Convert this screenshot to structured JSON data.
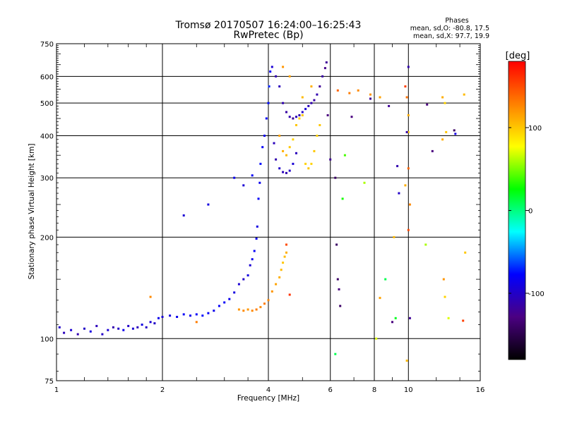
{
  "chart_data": {
    "type": "scatter",
    "title": "Tromsø 20170507 16:24:00–16:25:43",
    "subtitle": "RwPretec (Bp)",
    "xlabel": "Frequency [MHz]",
    "ylabel": "Stationary phase Virtual Height [km]",
    "x_scale": "log",
    "y_scale": "log",
    "xlim": [
      1,
      16
    ],
    "ylim": [
      75,
      750
    ],
    "x_ticks": [
      1,
      2,
      4,
      6,
      8,
      10,
      16
    ],
    "x_tick_labels": [
      "1",
      "2",
      "4",
      "6",
      "8",
      "10",
      "16"
    ],
    "y_ticks": [
      75,
      100,
      200,
      300,
      400,
      500,
      600,
      750
    ],
    "y_tick_labels": [
      "75",
      "100",
      "200",
      "300",
      "400",
      "500",
      "600",
      "750"
    ],
    "grid": true,
    "phases": {
      "heading": "Phases",
      "line_o": "mean, sd,O: -80.8, 17.5",
      "line_x": "mean, sd,X:  97.7, 19.9"
    },
    "colorbar": {
      "label": "[deg]",
      "range": [
        -180,
        180
      ],
      "ticks": [
        100,
        0,
        -100
      ],
      "tick_labels": [
        "100",
        "0",
        "-100"
      ],
      "colors": [
        "#000000",
        "#4b0082",
        "#0000ff",
        "#00ffff",
        "#00ff00",
        "#ffff00",
        "#ff8000",
        "#ff0000"
      ]
    },
    "series": [
      {
        "points": [
          [
            1.02,
            108,
            -100
          ],
          [
            1.05,
            104,
            -105
          ],
          [
            1.1,
            106,
            -95
          ],
          [
            1.15,
            103,
            -110
          ],
          [
            1.2,
            107,
            -100
          ],
          [
            1.25,
            105,
            -90
          ],
          [
            1.3,
            109,
            -105
          ],
          [
            1.35,
            103,
            -100
          ],
          [
            1.4,
            106,
            -95
          ],
          [
            1.45,
            108,
            -110
          ],
          [
            1.5,
            107,
            -100
          ],
          [
            1.55,
            106,
            -85
          ],
          [
            1.6,
            109,
            -100
          ],
          [
            1.65,
            107,
            -95
          ],
          [
            1.7,
            108,
            -105
          ],
          [
            1.75,
            110,
            -90
          ],
          [
            1.8,
            108,
            -100
          ],
          [
            1.85,
            112,
            -95
          ],
          [
            1.9,
            111,
            -100
          ],
          [
            1.95,
            115,
            -85
          ],
          [
            2.0,
            116,
            -95
          ],
          [
            2.1,
            117,
            -90
          ],
          [
            2.2,
            116,
            -85
          ],
          [
            2.3,
            118,
            -80
          ],
          [
            2.4,
            117,
            -85
          ],
          [
            2.5,
            118,
            -80
          ],
          [
            2.6,
            117,
            -75
          ],
          [
            2.7,
            119,
            -80
          ],
          [
            2.8,
            121,
            -85
          ],
          [
            2.9,
            125,
            -80
          ],
          [
            3.0,
            128,
            -80
          ],
          [
            3.1,
            131,
            -85
          ],
          [
            3.2,
            137,
            -90
          ],
          [
            3.3,
            145,
            -95
          ],
          [
            3.4,
            150,
            -100
          ],
          [
            3.5,
            154,
            -90
          ],
          [
            3.55,
            165,
            -95
          ],
          [
            3.6,
            172,
            -85
          ],
          [
            3.65,
            182,
            -80
          ],
          [
            3.7,
            198,
            -85
          ],
          [
            3.72,
            215,
            -90
          ],
          [
            3.75,
            260,
            -80
          ],
          [
            3.78,
            290,
            -85
          ],
          [
            3.8,
            330,
            -75
          ],
          [
            3.85,
            370,
            -80
          ],
          [
            3.9,
            400,
            -85
          ],
          [
            3.95,
            450,
            -80
          ],
          [
            4.0,
            500,
            -75
          ],
          [
            4.02,
            560,
            -70
          ],
          [
            4.05,
            620,
            -80
          ],
          [
            4.1,
            640,
            -95
          ],
          [
            4.2,
            600,
            -110
          ],
          [
            4.3,
            560,
            -105
          ],
          [
            4.4,
            500,
            -110
          ],
          [
            4.5,
            470,
            -115
          ],
          [
            4.6,
            455,
            -110
          ],
          [
            4.7,
            450,
            -120
          ],
          [
            4.8,
            455,
            -105
          ],
          [
            4.9,
            460,
            -110
          ],
          [
            5.0,
            470,
            -100
          ],
          [
            5.1,
            480,
            -95
          ],
          [
            5.2,
            490,
            -105
          ],
          [
            5.3,
            500,
            -110
          ],
          [
            5.4,
            510,
            -115
          ],
          [
            5.5,
            530,
            -110
          ],
          [
            5.6,
            560,
            -120
          ],
          [
            5.7,
            600,
            -115
          ],
          [
            5.8,
            635,
            -125
          ],
          [
            5.85,
            660,
            -120
          ],
          [
            4.15,
            380,
            -105
          ],
          [
            4.2,
            340,
            -110
          ],
          [
            4.3,
            320,
            -100
          ],
          [
            4.4,
            312,
            -105
          ],
          [
            4.5,
            310,
            -110
          ],
          [
            4.6,
            315,
            -100
          ],
          [
            4.7,
            330,
            -95
          ],
          [
            4.8,
            355,
            -105
          ],
          [
            2.3,
            232,
            -95
          ],
          [
            2.7,
            250,
            -90
          ],
          [
            3.2,
            300,
            -85
          ],
          [
            3.4,
            285,
            -95
          ],
          [
            3.6,
            305,
            -80
          ]
        ]
      },
      {
        "points": [
          [
            3.3,
            122,
            120
          ],
          [
            3.4,
            121,
            125
          ],
          [
            3.5,
            122,
            120
          ],
          [
            3.6,
            121,
            125
          ],
          [
            3.7,
            122,
            130
          ],
          [
            3.8,
            124,
            125
          ],
          [
            3.9,
            127,
            130
          ],
          [
            4.0,
            130,
            125
          ],
          [
            4.1,
            138,
            120
          ],
          [
            4.2,
            145,
            115
          ],
          [
            4.3,
            152,
            110
          ],
          [
            4.35,
            160,
            105
          ],
          [
            4.4,
            168,
            100
          ],
          [
            4.45,
            175,
            105
          ],
          [
            4.5,
            180,
            110
          ],
          [
            4.3,
            400,
            115
          ],
          [
            4.4,
            360,
            110
          ],
          [
            4.5,
            350,
            105
          ],
          [
            4.6,
            370,
            100
          ],
          [
            4.7,
            390,
            95
          ],
          [
            4.8,
            430,
            100
          ],
          [
            4.9,
            450,
            95
          ],
          [
            5.0,
            460,
            100
          ],
          [
            5.1,
            330,
            95
          ],
          [
            5.2,
            320,
            100
          ],
          [
            5.3,
            330,
            95
          ],
          [
            5.4,
            360,
            100
          ],
          [
            5.5,
            400,
            95
          ],
          [
            5.6,
            430,
            100
          ],
          [
            5.0,
            520,
            105
          ],
          [
            5.3,
            560,
            110
          ],
          [
            4.4,
            640,
            120
          ],
          [
            4.6,
            600,
            115
          ],
          [
            6.3,
            545,
            140
          ],
          [
            6.8,
            535,
            130
          ],
          [
            7.2,
            545,
            125
          ],
          [
            7.8,
            530,
            120
          ],
          [
            8.3,
            520,
            115
          ],
          [
            9.8,
            560,
            155
          ],
          [
            9.9,
            520,
            135
          ],
          [
            10.0,
            460,
            110
          ],
          [
            10.0,
            410,
            100
          ],
          [
            10.0,
            320,
            140
          ],
          [
            9.8,
            285,
            110
          ],
          [
            10.1,
            250,
            125
          ],
          [
            10.0,
            210,
            150
          ],
          [
            9.1,
            200,
            105
          ],
          [
            12.5,
            520,
            110
          ],
          [
            12.7,
            500,
            95
          ],
          [
            12.8,
            410,
            100
          ],
          [
            12.5,
            390,
            110
          ],
          [
            14.4,
            530,
            105
          ],
          [
            14.5,
            180,
            100
          ],
          [
            12.6,
            150,
            120
          ],
          [
            12.7,
            133,
            95
          ],
          [
            8.3,
            132,
            115
          ],
          [
            14.3,
            113,
            155
          ],
          [
            9.9,
            86,
            105
          ],
          [
            4.6,
            135,
            160
          ],
          [
            4.5,
            190,
            150
          ],
          [
            2.5,
            112,
            130
          ],
          [
            1.85,
            133,
            125
          ]
        ]
      },
      {
        "points": [
          [
            6.2,
            300,
            -140
          ],
          [
            6.25,
            190,
            -140
          ],
          [
            6.3,
            150,
            -140
          ],
          [
            6.35,
            140,
            -130
          ],
          [
            6.4,
            125,
            -140
          ],
          [
            6.9,
            455,
            -130
          ],
          [
            7.8,
            515,
            -120
          ],
          [
            8.8,
            490,
            -120
          ],
          [
            9.3,
            325,
            -110
          ],
          [
            9.4,
            270,
            -100
          ],
          [
            9.9,
            410,
            -110
          ],
          [
            10.1,
            115,
            -120
          ],
          [
            11.3,
            495,
            -130
          ],
          [
            11.7,
            360,
            -130
          ],
          [
            13.6,
            405,
            -90
          ],
          [
            13.5,
            415,
            -140
          ],
          [
            9.0,
            112,
            -130
          ],
          [
            10.0,
            640,
            -110
          ],
          [
            6.0,
            340,
            -120
          ],
          [
            5.9,
            460,
            -130
          ]
        ]
      },
      {
        "points": [
          [
            6.2,
            90,
            10
          ],
          [
            6.5,
            260,
            30
          ],
          [
            7.5,
            290,
            60
          ],
          [
            8.1,
            100,
            70
          ],
          [
            8.6,
            150,
            10
          ],
          [
            9.2,
            115,
            20
          ],
          [
            6.6,
            350,
            40
          ],
          [
            11.2,
            190,
            60
          ],
          [
            13.0,
            115,
            70
          ]
        ]
      }
    ]
  }
}
